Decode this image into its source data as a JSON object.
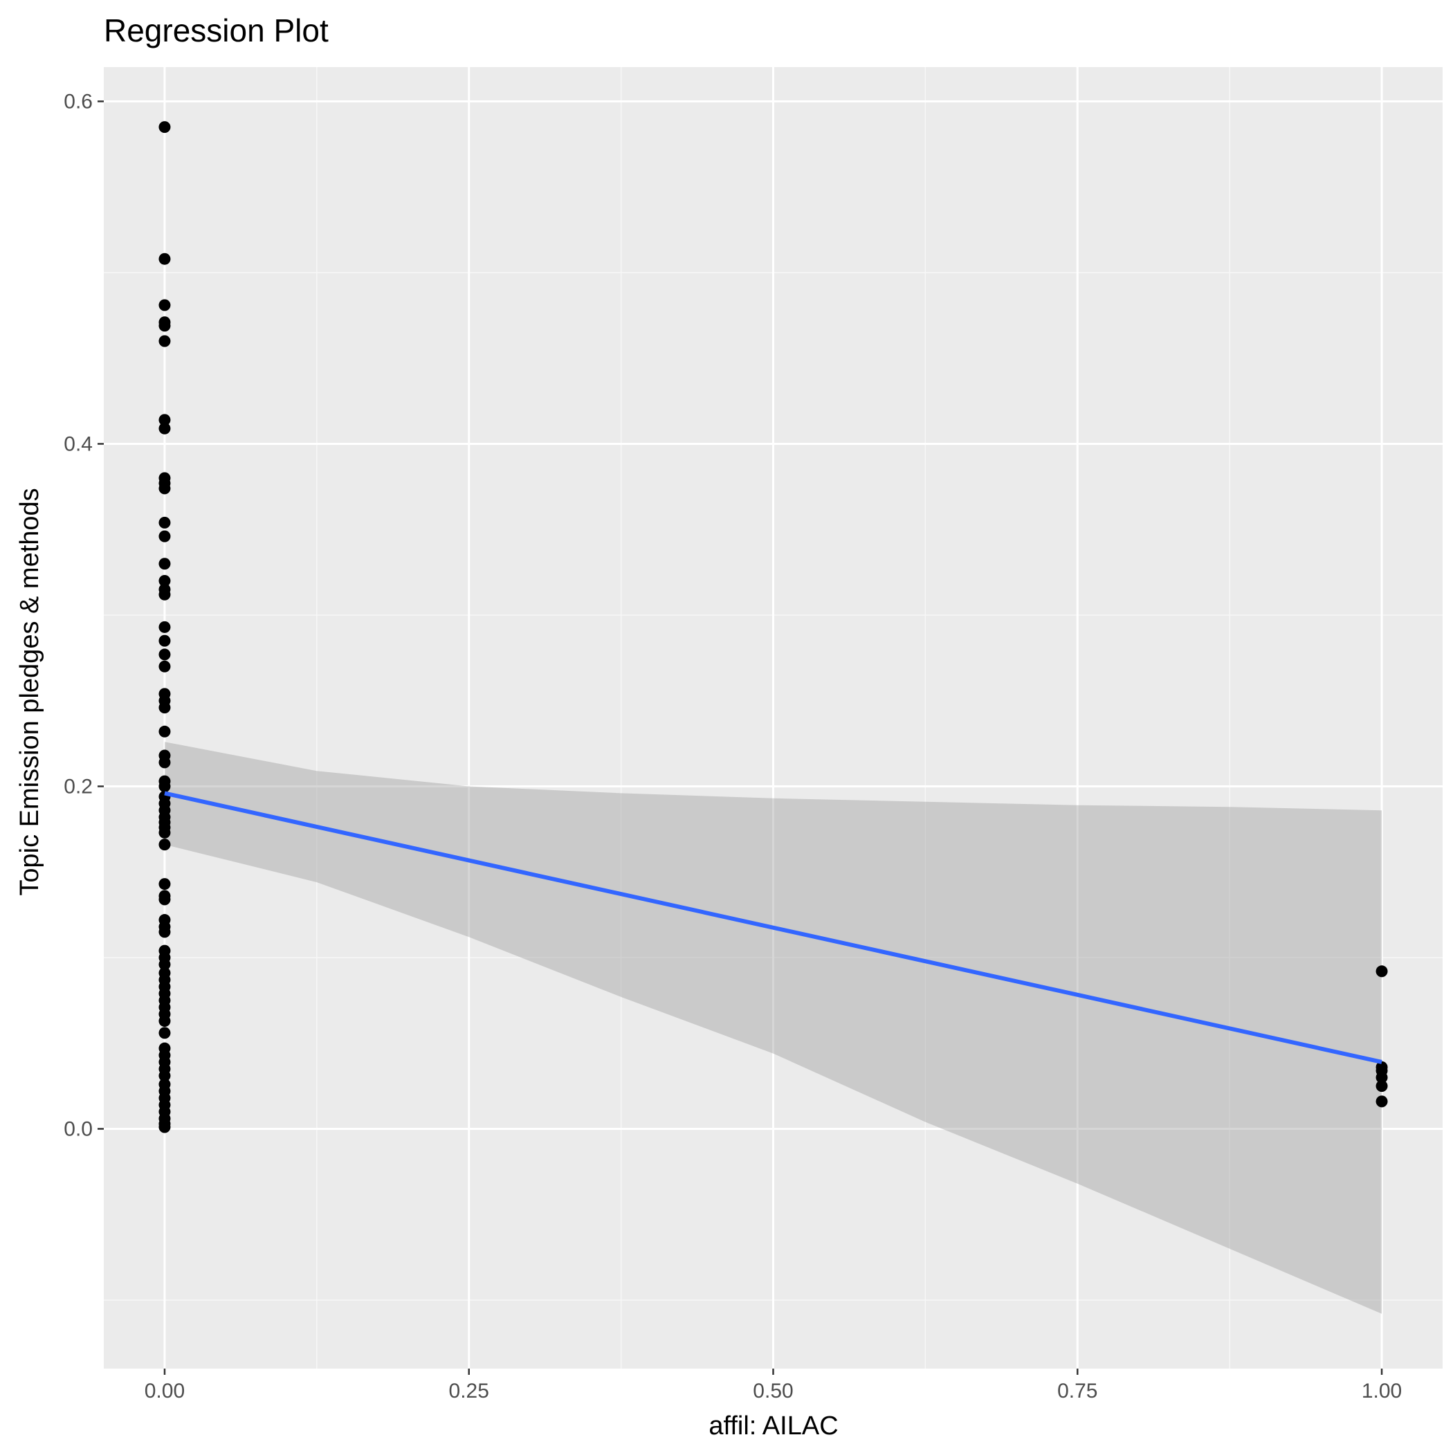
{
  "chart_data": {
    "type": "scatter",
    "title": "Regression Plot",
    "xlabel": "affil: AILAC",
    "ylabel": "Topic Emission pledges & methods",
    "xlim": [
      -0.05,
      1.05
    ],
    "ylim": [
      -0.14,
      0.62
    ],
    "x_ticks": [
      0.0,
      0.25,
      0.5,
      0.75,
      1.0
    ],
    "x_tick_labels": [
      "0.00",
      "0.25",
      "0.50",
      "0.75",
      "1.00"
    ],
    "y_ticks": [
      0.0,
      0.2,
      0.4,
      0.6
    ],
    "y_tick_labels": [
      "0.0",
      "0.2",
      "0.4",
      "0.6"
    ],
    "grid": true,
    "points": [
      {
        "x": 0,
        "y": 0.585
      },
      {
        "x": 0,
        "y": 0.508
      },
      {
        "x": 0,
        "y": 0.481
      },
      {
        "x": 0,
        "y": 0.471
      },
      {
        "x": 0,
        "y": 0.469
      },
      {
        "x": 0,
        "y": 0.46
      },
      {
        "x": 0,
        "y": 0.414
      },
      {
        "x": 0,
        "y": 0.409
      },
      {
        "x": 0,
        "y": 0.38
      },
      {
        "x": 0,
        "y": 0.377
      },
      {
        "x": 0,
        "y": 0.374
      },
      {
        "x": 0,
        "y": 0.354
      },
      {
        "x": 0,
        "y": 0.346
      },
      {
        "x": 0,
        "y": 0.33
      },
      {
        "x": 0,
        "y": 0.32
      },
      {
        "x": 0,
        "y": 0.315
      },
      {
        "x": 0,
        "y": 0.312
      },
      {
        "x": 0,
        "y": 0.293
      },
      {
        "x": 0,
        "y": 0.285
      },
      {
        "x": 0,
        "y": 0.277
      },
      {
        "x": 0,
        "y": 0.27
      },
      {
        "x": 0,
        "y": 0.254
      },
      {
        "x": 0,
        "y": 0.25
      },
      {
        "x": 0,
        "y": 0.246
      },
      {
        "x": 0,
        "y": 0.232
      },
      {
        "x": 0,
        "y": 0.218
      },
      {
        "x": 0,
        "y": 0.214
      },
      {
        "x": 0,
        "y": 0.203
      },
      {
        "x": 0,
        "y": 0.2
      },
      {
        "x": 0,
        "y": 0.194
      },
      {
        "x": 0,
        "y": 0.19
      },
      {
        "x": 0,
        "y": 0.186
      },
      {
        "x": 0,
        "y": 0.182
      },
      {
        "x": 0,
        "y": 0.179
      },
      {
        "x": 0,
        "y": 0.176
      },
      {
        "x": 0,
        "y": 0.173
      },
      {
        "x": 0,
        "y": 0.166
      },
      {
        "x": 0,
        "y": 0.143
      },
      {
        "x": 0,
        "y": 0.136
      },
      {
        "x": 0,
        "y": 0.134
      },
      {
        "x": 0,
        "y": 0.122
      },
      {
        "x": 0,
        "y": 0.118
      },
      {
        "x": 0,
        "y": 0.115
      },
      {
        "x": 0,
        "y": 0.104
      },
      {
        "x": 0,
        "y": 0.1
      },
      {
        "x": 0,
        "y": 0.096
      },
      {
        "x": 0,
        "y": 0.091
      },
      {
        "x": 0,
        "y": 0.087
      },
      {
        "x": 0,
        "y": 0.083
      },
      {
        "x": 0,
        "y": 0.079
      },
      {
        "x": 0,
        "y": 0.075
      },
      {
        "x": 0,
        "y": 0.071
      },
      {
        "x": 0,
        "y": 0.067
      },
      {
        "x": 0,
        "y": 0.063
      },
      {
        "x": 0,
        "y": 0.056
      },
      {
        "x": 0,
        "y": 0.047
      },
      {
        "x": 0,
        "y": 0.043
      },
      {
        "x": 0,
        "y": 0.039
      },
      {
        "x": 0,
        "y": 0.035
      },
      {
        "x": 0,
        "y": 0.031
      },
      {
        "x": 0,
        "y": 0.026
      },
      {
        "x": 0,
        "y": 0.022
      },
      {
        "x": 0,
        "y": 0.018
      },
      {
        "x": 0,
        "y": 0.014
      },
      {
        "x": 0,
        "y": 0.01
      },
      {
        "x": 0,
        "y": 0.006
      },
      {
        "x": 0,
        "y": 0.003
      },
      {
        "x": 0,
        "y": 0.001
      },
      {
        "x": 1,
        "y": 0.092
      },
      {
        "x": 1,
        "y": 0.036
      },
      {
        "x": 1,
        "y": 0.034
      },
      {
        "x": 1,
        "y": 0.03
      },
      {
        "x": 1,
        "y": 0.025
      },
      {
        "x": 1,
        "y": 0.016
      }
    ],
    "regression_line": {
      "x": [
        0,
        1
      ],
      "y": [
        0.196,
        0.039
      ]
    },
    "confidence_band": {
      "x": [
        0,
        0.125,
        0.25,
        0.375,
        0.5,
        0.625,
        0.75,
        0.875,
        1.0
      ],
      "upper": [
        0.226,
        0.209,
        0.2,
        0.196,
        0.193,
        0.191,
        0.189,
        0.188,
        0.186
      ],
      "lower": [
        0.166,
        0.144,
        0.112,
        0.077,
        0.044,
        0.004,
        -0.032,
        -0.07,
        -0.108
      ]
    },
    "colors": {
      "panel_background": "#ebebeb",
      "grid_major": "#ffffff",
      "grid_minor": "#f7f7f7",
      "points": "#000000",
      "line": "#3366ff",
      "band": "#999999"
    }
  }
}
